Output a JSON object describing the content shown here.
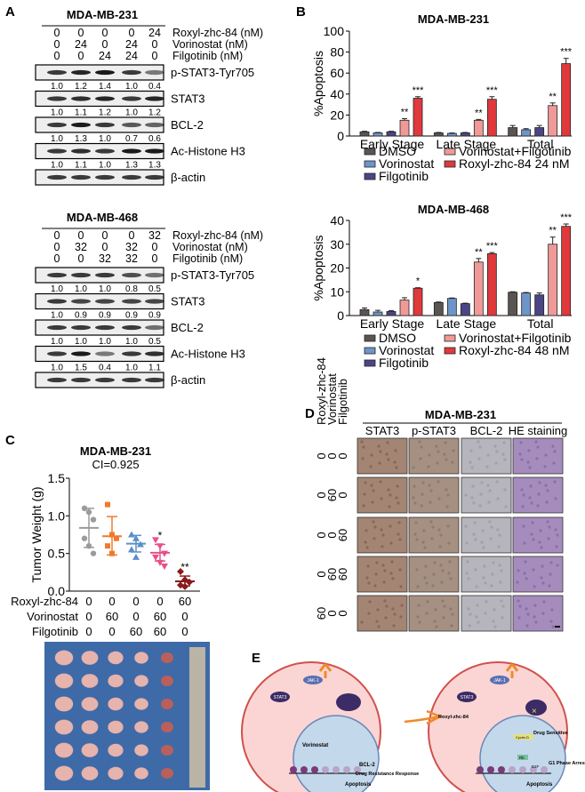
{
  "panel_letters": {
    "a": "A",
    "b": "B",
    "c": "C",
    "d": "D",
    "e": "E"
  },
  "panel_a": {
    "blots": [
      {
        "cell_line": "MDA-MB-231",
        "treatments": [
          {
            "label": "Roxyl-zhc-84 (nM)",
            "values": [
              "0",
              "0",
              "0",
              "0",
              "24"
            ]
          },
          {
            "label": "Vorinostat (nM)",
            "values": [
              "0",
              "24",
              "0",
              "24",
              "0"
            ]
          },
          {
            "label": "Filgotinib (nM)",
            "values": [
              "0",
              "0",
              "24",
              "24",
              "0"
            ]
          }
        ],
        "proteins": [
          {
            "label": "p-STAT3-Tyr705",
            "quant": [
              "1.0",
              "1.2",
              "1.4",
              "1.0",
              "0.4"
            ]
          },
          {
            "label": "STAT3",
            "quant": [
              "1.0",
              "1.1",
              "1.2",
              "1.0",
              "1.2"
            ]
          },
          {
            "label": "BCL-2",
            "quant": [
              "1.0",
              "1.3",
              "1.0",
              "0.7",
              "0.6"
            ]
          },
          {
            "label": "Ac-Histone H3",
            "quant": [
              "1.0",
              "1.1",
              "1.0",
              "1.3",
              "1.3"
            ]
          },
          {
            "label": "β-actin",
            "quant": []
          }
        ]
      },
      {
        "cell_line": "MDA-MB-468",
        "treatments": [
          {
            "label": "Roxyl-zhc-84 (nM)",
            "values": [
              "0",
              "0",
              "0",
              "0",
              "32"
            ]
          },
          {
            "label": "Vorinostat (nM)",
            "values": [
              "0",
              "32",
              "0",
              "32",
              "0"
            ]
          },
          {
            "label": "Filgotinib (nM)",
            "values": [
              "0",
              "0",
              "32",
              "32",
              "0"
            ]
          }
        ],
        "proteins": [
          {
            "label": "p-STAT3-Tyr705",
            "quant": [
              "1.0",
              "1.0",
              "1.0",
              "0.8",
              "0.5"
            ]
          },
          {
            "label": "STAT3",
            "quant": [
              "1.0",
              "0.9",
              "0.9",
              "0.9",
              "0.9"
            ]
          },
          {
            "label": "BCL-2",
            "quant": [
              "1.0",
              "1.0",
              "1.0",
              "1.0",
              "0.5"
            ]
          },
          {
            "label": "Ac-Histone H3",
            "quant": [
              "1.0",
              "1.5",
              "0.4",
              "1.0",
              "1.1"
            ]
          },
          {
            "label": "β-actin",
            "quant": []
          }
        ]
      }
    ]
  },
  "chart_data": [
    {
      "type": "bar",
      "title": "MDA-MB-231",
      "ylabel": "%Apoptosis",
      "xlabel": "",
      "ylim": [
        0,
        100
      ],
      "yticks": [
        "0",
        "20",
        "40",
        "60",
        "80",
        "100"
      ],
      "categories": [
        "Early Stage",
        "Late Stage",
        "Total"
      ],
      "legend_position": "bottom",
      "series": [
        {
          "name": "DMSO",
          "color": "#5a5552",
          "values": [
            4,
            3,
            8
          ],
          "errors": [
            0.5,
            0.4,
            2
          ]
        },
        {
          "name": "Vorinostat",
          "color": "#6d95c9",
          "values": [
            3,
            2.5,
            6
          ],
          "errors": [
            0.4,
            0.4,
            1
          ]
        },
        {
          "name": "Filgotinib",
          "color": "#4b4585",
          "values": [
            4,
            3,
            8
          ],
          "errors": [
            0.5,
            0.4,
            2
          ]
        },
        {
          "name": "Vorinostat+Filgotinib",
          "color": "#f09a98",
          "values": [
            15,
            15,
            29
          ],
          "errors": [
            1.5,
            0.8,
            2.5
          ],
          "sig": [
            "**",
            "**",
            "**"
          ]
        },
        {
          "name": "Roxyl-zhc-84 24 nM",
          "color": "#e0393c",
          "values": [
            36,
            35,
            69
          ],
          "errors": [
            1.5,
            2.5,
            5
          ],
          "sig": [
            "***",
            "***",
            "***"
          ]
        }
      ]
    },
    {
      "type": "bar",
      "title": "MDA-MB-468",
      "ylabel": "%Apoptosis",
      "xlabel": "",
      "ylim": [
        0,
        40
      ],
      "yticks": [
        "0",
        "10",
        "20",
        "30",
        "40"
      ],
      "categories": [
        "Early Stage",
        "Late Stage",
        "Total"
      ],
      "legend_position": "bottom",
      "series": [
        {
          "name": "DMSO",
          "color": "#5a5552",
          "values": [
            2.5,
            5.5,
            9.8
          ],
          "errors": [
            0.7,
            0.2,
            0.2
          ]
        },
        {
          "name": "Vorinostat",
          "color": "#6d95c9",
          "values": [
            1.5,
            7.2,
            9.5
          ],
          "errors": [
            0.7,
            0.2,
            0.2
          ]
        },
        {
          "name": "Filgotinib",
          "color": "#4b4585",
          "values": [
            1.7,
            5,
            8.7
          ],
          "errors": [
            0.4,
            0.2,
            0.8
          ]
        },
        {
          "name": "Vorinostat+Filgotinib",
          "color": "#f09a98",
          "values": [
            6.5,
            22.5,
            30
          ],
          "errors": [
            1,
            1.5,
            3
          ],
          "sig": [
            "",
            "**",
            "**"
          ]
        },
        {
          "name": "Roxyl-zhc-84 48 nM",
          "color": "#e0393c",
          "values": [
            11.5,
            26,
            37.5
          ],
          "errors": [
            0.2,
            0.5,
            1
          ],
          "sig": [
            "*",
            "***",
            "***"
          ]
        }
      ]
    },
    {
      "type": "scatter",
      "title": "MDA-MB-231",
      "subtitle": "CI=0.925",
      "ylabel": "Tumor Weight (g)",
      "ylim": [
        0,
        1.5
      ],
      "yticks": [
        "0.0",
        "0.5",
        "1.0",
        "1.5"
      ],
      "row_labels": [
        "Roxyl-zhc-84",
        "Vorinostat",
        "Filgotinib"
      ],
      "groups": [
        {
          "doses": [
            "0",
            "0",
            "0"
          ],
          "color": "#9b9b9b",
          "marker": "circle",
          "points": [
            1.1,
            1.05,
            0.95,
            0.7,
            0.6,
            0.5
          ],
          "mean": 0.84,
          "sd": [
            0.58,
            1.1
          ],
          "sig": ""
        },
        {
          "doses": [
            "0",
            "60",
            "0"
          ],
          "color": "#f07a2c",
          "marker": "square",
          "points": [
            1.15,
            0.75,
            0.7,
            0.6,
            0.5
          ],
          "mean": 0.73,
          "sd": [
            0.48,
            0.99
          ],
          "sig": ""
        },
        {
          "doses": [
            "0",
            "0",
            "60"
          ],
          "color": "#5b8fc9",
          "marker": "triangle",
          "points": [
            0.75,
            0.7,
            0.62,
            0.55,
            0.45
          ],
          "mean": 0.63,
          "sd": [
            0.52,
            0.74
          ],
          "sig": ""
        },
        {
          "doses": [
            "0",
            "60",
            "60"
          ],
          "color": "#e8508a",
          "marker": "triangle-down",
          "points": [
            0.68,
            0.6,
            0.5,
            0.45,
            0.38,
            0.33
          ],
          "mean": 0.51,
          "sd": [
            0.4,
            0.62
          ],
          "sig": "*"
        },
        {
          "doses": [
            "60",
            "0",
            "0"
          ],
          "color": "#8b1a1a",
          "marker": "diamond",
          "points": [
            0.26,
            0.15,
            0.12,
            0.08,
            0.06
          ],
          "mean": 0.13,
          "sd": [
            0.07,
            0.2
          ],
          "sig": "**"
        }
      ]
    }
  ],
  "panel_d": {
    "cell_line": "MDA-MB-231",
    "row_header": [
      "Roxyl-zhc-84",
      "Vorinostat",
      "Filgotinib"
    ],
    "columns": [
      "STAT3",
      "p-STAT3",
      "BCL-2",
      "HE staining"
    ],
    "rows": [
      [
        "0",
        "0",
        "0"
      ],
      [
        "0",
        "60",
        "0"
      ],
      [
        "0",
        "0",
        "60"
      ],
      [
        "0",
        "60",
        "60"
      ],
      [
        "60",
        "0",
        "0"
      ]
    ]
  },
  "panel_e": {
    "left": {
      "jak": "JAK-1",
      "stat": "STAT3",
      "drug": "Vorinostat",
      "bcl": "BCL-2",
      "resist": "Drug Resistance Response",
      "apop": "Apoptosis",
      "p": "P"
    },
    "right": {
      "jak": "JAK-1",
      "stat": "STAT3",
      "drug": "Roxyl-zhc-84",
      "sens": "Drug Sensitive",
      "cyclin": "Cyclin D",
      "rb": "Rb",
      "e2f": "E2F",
      "arrest": "G1 Phase Arrest",
      "apop": "Apoptosis",
      "p": "P"
    }
  }
}
